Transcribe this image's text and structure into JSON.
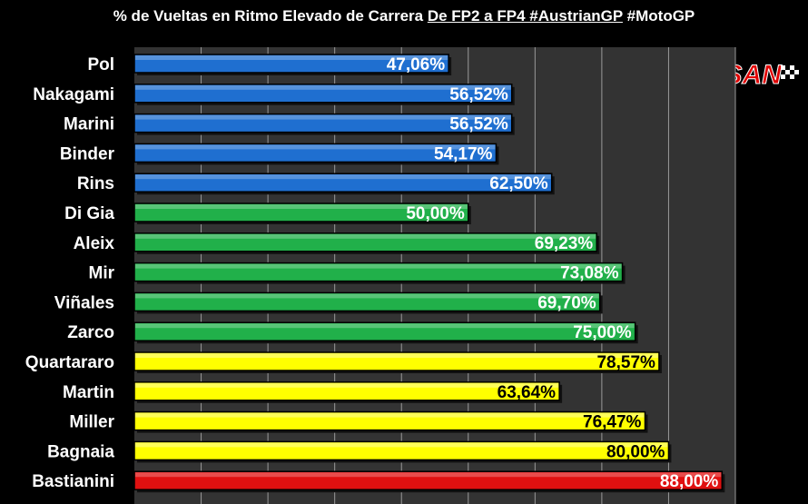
{
  "title": {
    "part1": "% de Vueltas en Ritmo Elevado de Carrera ",
    "part2": "De FP2 a FP4 #AustrianGP",
    "part3": "  #MotoGP"
  },
  "logo": {
    "text": "MOTOSAN",
    "icon": "motorcycle-rider-icon"
  },
  "colors": {
    "blue": "#1f6fd0",
    "green": "#21b04a",
    "yellow": "#ffff00",
    "red": "#e01010",
    "background": "#000000",
    "plot_background": "#333333",
    "gridline": "#9a9a9a"
  },
  "chart_data": {
    "type": "bar",
    "orientation": "horizontal",
    "title": "% de Vueltas en Ritmo Elevado de Carrera De FP2 a FP4 #AustrianGP  #MotoGP",
    "xlim": [
      0,
      90
    ],
    "grid": true,
    "categories": [
      "Pol",
      "Nakagami",
      "Marini",
      "Binder",
      "Rins",
      "Di Gia",
      "Aleix",
      "Mir",
      "Viñales",
      "Zarco",
      "Quartararo",
      "Martin",
      "Miller",
      "Bagnaia",
      "Bastianini"
    ],
    "values": [
      47.06,
      56.52,
      56.52,
      54.17,
      62.5,
      50.0,
      69.23,
      73.08,
      69.7,
      75.0,
      78.57,
      63.64,
      76.47,
      80.0,
      88.0
    ],
    "labels": [
      "47,06%",
      "56,52%",
      "56,52%",
      "54,17%",
      "62,50%",
      "50,00%",
      "69,23%",
      "73,08%",
      "69,70%",
      "75,00%",
      "78,57%",
      "63,64%",
      "76,47%",
      "80,00%",
      "88,00%"
    ],
    "bar_colors": [
      "blue",
      "blue",
      "blue",
      "blue",
      "blue",
      "green",
      "green",
      "green",
      "green",
      "green",
      "yellow",
      "yellow",
      "yellow",
      "yellow",
      "red"
    ]
  }
}
